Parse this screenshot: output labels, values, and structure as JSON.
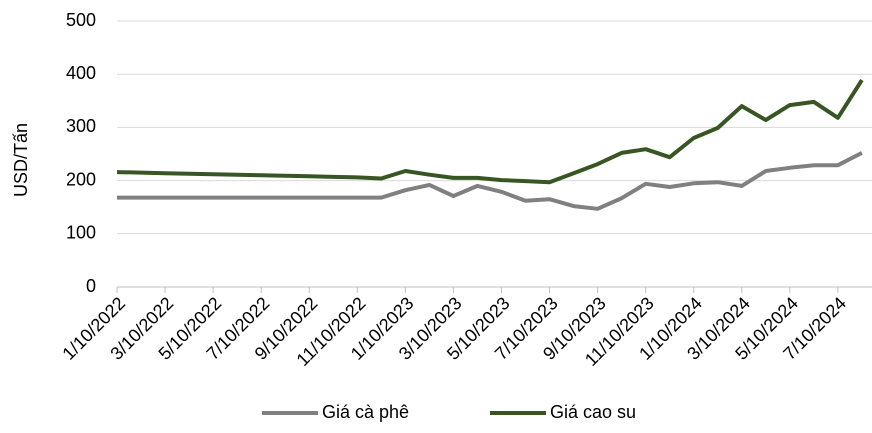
{
  "chart_data": {
    "type": "line",
    "y_axis_label": "USD/Tấn",
    "categories": [
      "1/10/2022",
      null,
      "3/10/2022",
      null,
      "5/10/2022",
      null,
      "7/10/2022",
      null,
      "9/10/2022",
      null,
      "11/10/2022",
      null,
      "1/10/2023",
      null,
      "3/10/2023",
      null,
      "5/10/2023",
      null,
      "7/10/2023",
      null,
      "9/10/2023",
      null,
      "11/10/2023",
      null,
      "1/10/2024",
      null,
      "3/10/2024",
      null,
      "5/10/2024",
      null,
      "7/10/2024",
      null
    ],
    "series": [
      {
        "name": "Giá cà phê",
        "color": "#808080",
        "values": [
          168,
          168,
          168,
          168,
          168,
          168,
          168,
          168,
          168,
          168,
          168,
          168,
          182,
          192,
          171,
          190,
          179,
          162,
          165,
          152,
          147,
          167,
          194,
          188,
          195,
          197,
          190,
          218,
          224,
          229,
          229,
          252
        ]
      },
      {
        "name": "Giá cao su",
        "color": "#375623",
        "values": [
          216,
          215,
          214,
          213,
          212,
          211,
          210,
          209,
          208,
          207,
          206,
          204,
          218,
          211,
          205,
          205,
          201,
          199,
          197,
          214,
          231,
          252,
          259,
          244,
          280,
          299,
          340,
          314,
          342,
          348,
          318,
          389
        ]
      }
    ],
    "ylim": [
      0,
      500
    ],
    "yticks": [
      0,
      100,
      200,
      300,
      400,
      500
    ],
    "grid": true,
    "legend": "bottom"
  }
}
